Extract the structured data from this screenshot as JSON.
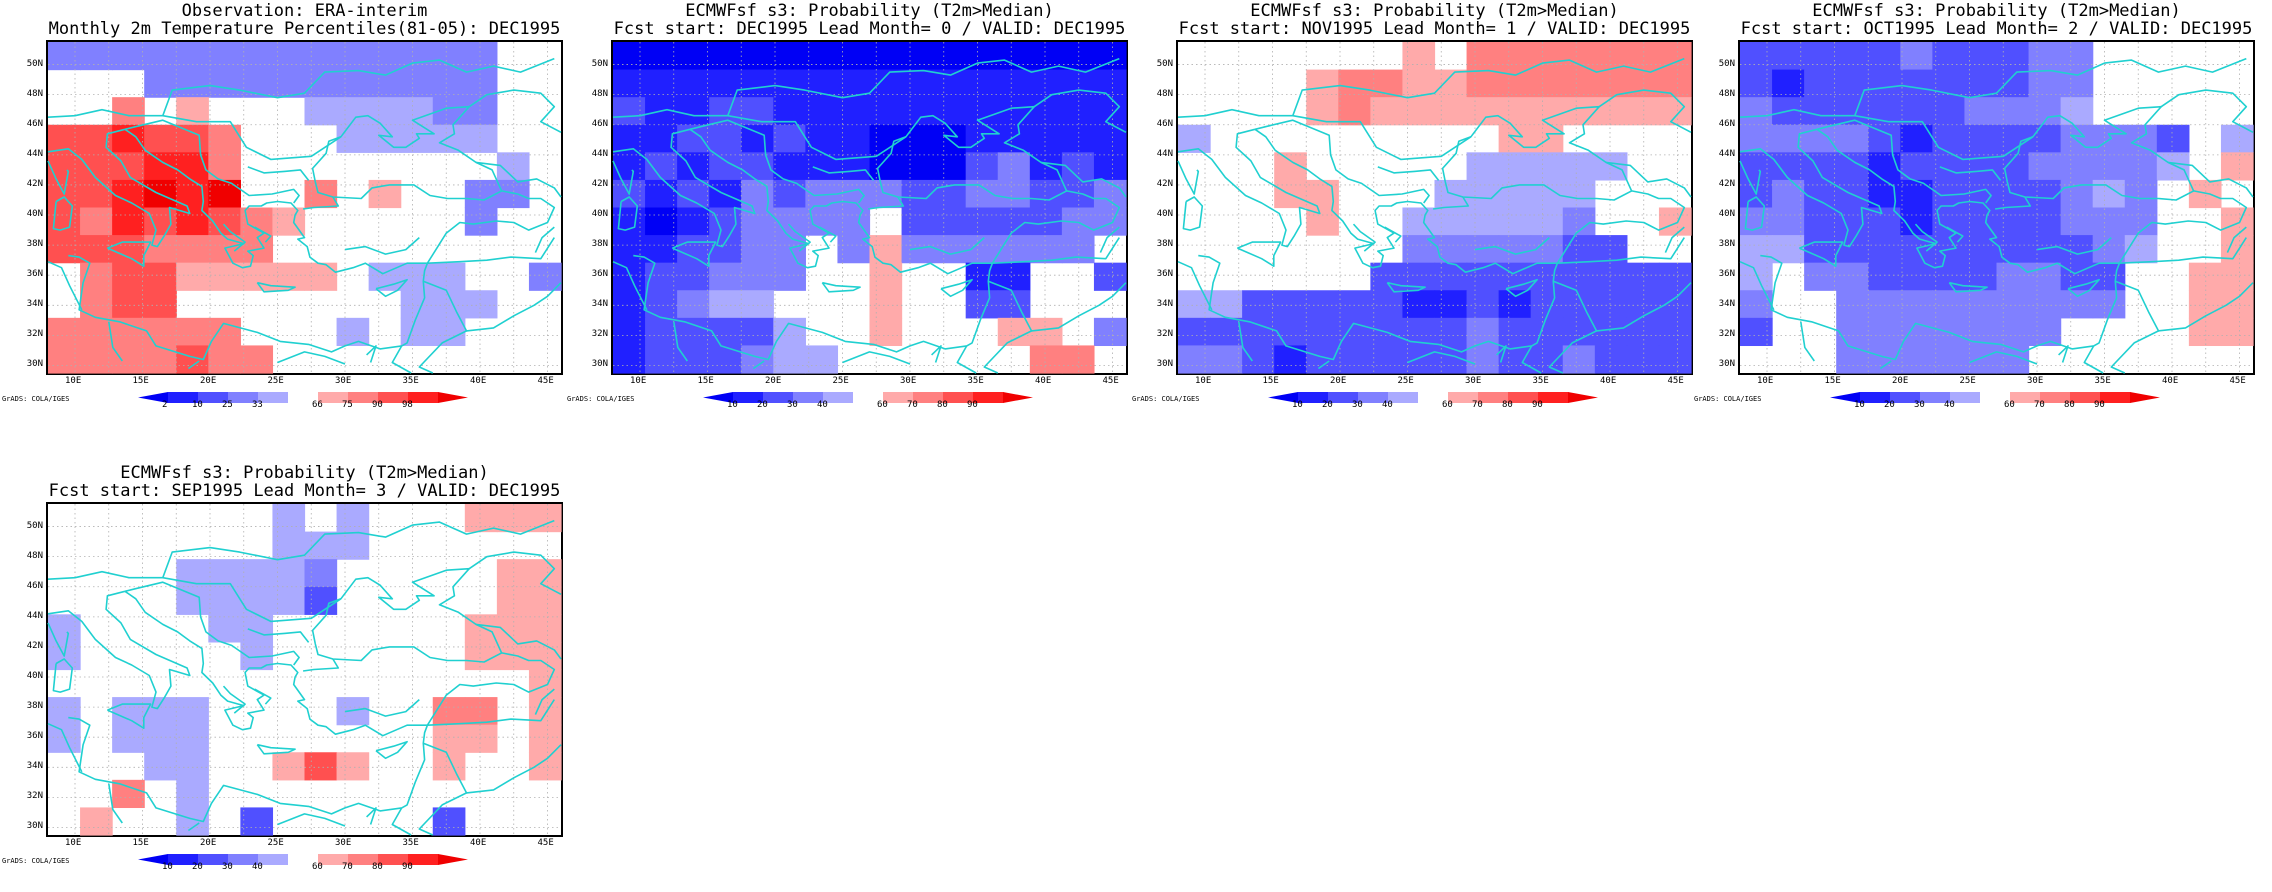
{
  "colors": {
    "coast": "#20d0d0",
    "grid": "#b0b0b0",
    "palette": {
      "b5": "#0000f5",
      "b4": "#2020ff",
      "b3": "#5050ff",
      "b2": "#8080ff",
      "b1": "#aaaaff",
      "w": "#ffffff",
      "r1": "#ffaaaa",
      "r2": "#ff8080",
      "r3": "#ff5050",
      "r4": "#ff2020",
      "r5": "#f00000"
    }
  },
  "axes": {
    "lat_labels": [
      "50N",
      "48N",
      "46N",
      "44N",
      "42N",
      "40N",
      "38N",
      "36N",
      "34N",
      "32N",
      "30N"
    ],
    "lon_labels": [
      "10E",
      "15E",
      "20E",
      "25E",
      "30E",
      "35E",
      "40E",
      "45E"
    ],
    "lon_range": [
      8,
      46
    ],
    "lat_range": [
      29.5,
      51.5
    ]
  },
  "credit": "GrADS: COLA/IGES",
  "panels": [
    {
      "title1": "Observation: ERA-interim",
      "title2": "Monthly 2m Temperature Percentiles(81-05): DEC1995",
      "colorbar_labels": [
        "2",
        "10",
        "25",
        "33",
        "66",
        "75",
        "90",
        "98"
      ],
      "chart_data": {
        "type": "heatmap",
        "grid": [
          "b2 b2 b2 b2 b2 b2 b2 b2 b2 b2 b2 b2 b2 b2 w  w",
          "w  w  w  b2 b2 b2 b2 b2 b2 b2 b2 b2 b2 b2 w  w",
          "w  w  r2 w  r1 w  w  w  b1 b1 b1 b1 b2 b2 w  w",
          "r3 r3 r4 r3 r3 r2 w  w  w  b1 b1 b1 b1 b1 w  w",
          "r3 r3 r3 r4 r4 r2 w  w  w  w  w  w  w  w  b1 w",
          "r3 r3 r4 r5 r4 r5 w  w  r2 w  r1 w  w  b2 b2 w",
          "r3 r2 r4 r3 r4 r3 r2 r1 w  w  w  w  w  b2 w  w",
          "r3 r3 r3 r2 r2 r2 r2 w  w  w  w  w  w  w  w  w",
          "w  r2 r3 r3 r1 r1 r1 r1 r1 w  b1 b1 b1 w  w  b2",
          "w  r2 r3 r3 w  w  w  w  w  w  w  b1 b1 b1 w  w",
          "r2 r2 r2 r2 r2 r2 w  w  w  b1 w  b1 b1 w  w  w",
          "r2 r2 r2 r2 r3 r2 r2 w  w  w  w  w  w  w  w  w"
        ]
      }
    },
    {
      "title1": "ECMWFsf s3: Probability (T2m>Median)",
      "title2": "Fcst start: DEC1995   Lead Month= 0 / VALID: DEC1995",
      "colorbar_labels": [
        "10",
        "20",
        "30",
        "40",
        "60",
        "70",
        "80",
        "90"
      ],
      "chart_data": {
        "type": "heatmap",
        "grid": [
          "b5 b5 b5 b5 b5 b5 b5 b5 b5 b5 b5 b5 b5 b5 b5 b5",
          "b4 b4 b4 b4 b4 b4 b4 b4 b4 b4 b4 b4 b4 b4 b4 b4",
          "b3 b4 b4 b3 b3 b4 b4 b4 b4 b4 b4 b4 b4 b4 b4 b4",
          "b4 b4 b3 b3 b4 b3 b4 b4 b5 b5 b5 b4 b4 b4 b4 b4",
          "b4 b3 b4 b3 b3 b4 b4 b4 b5 b5 b5 b3 b2 b4 b3 b4",
          "b3 b4 b3 b4 b2 b3 b2 b2 b2 b3 b3 b2 b2 b3 b3 b2",
          "b4 b5 b4 b3 b2 b2 b2 b2 w  b3 b3 b3 b3 b3 b2 b2",
          "b4 b4 b3 b3 b2 b2 w  b2 r1 b2 b2 b2 b2 b2 b2 w",
          "b4 b3 b3 b2 b2 b2 w  w  r1 w  w  b4 b4 w  w  b3",
          "b4 b3 b2 b1 b1 w  w  w  r1 w  w  b3 b3 w  w  w",
          "b4 b3 b3 b3 b3 b1 w  w  r1 w  w  w  r1 r1 w  b2",
          "b4 b3 b3 b3 b2 b1 b1 w  w  w  w  w  w  r2 r2 w"
        ]
      }
    },
    {
      "title1": "ECMWFsf s3: Probability (T2m>Median)",
      "title2": "Fcst start: NOV1995   Lead Month= 1 / VALID: DEC1995",
      "colorbar_labels": [
        "10",
        "20",
        "30",
        "40",
        "60",
        "70",
        "80",
        "90"
      ],
      "chart_data": {
        "type": "heatmap",
        "grid": [
          "w  w  w  w  w  w  w  r1 w  r2 r2 r2 r2 r2 r2 r2",
          "w  w  w  w  r1 r2 r2 r1 r1 r2 r2 r2 r2 r2 r2 r2",
          "w  w  w  w  r1 r2 r1 r1 r1 r1 r1 r1 r1 r1 r1 r1",
          "b1 w  w  w  w  w  w  w  w  w  r1 r1 w  w  w  w",
          "w  w  w  r1 w  w  w  w  w  b1 b1 b1 b1 b1 w  w",
          "w  w  w  r1 r1 w  w  w  b1 b1 b1 b1 b1 w  w  w",
          "w  w  w  w  r1 w  w  b1 b1 b1 b1 b1 b2 w  w  r1",
          "w  w  w  w  w  w  w  b2 b2 b2 b2 b2 b3 b3 w  w",
          "w  w  w  w  w  w  b3 b3 b3 b3 b3 b3 b3 b3 b3 b3",
          "b1 b1 b3 b3 b3 b3 b3 b4 b4 b3 b4 b3 b3 b3 b3 b3",
          "b3 b3 b3 b3 b3 b3 b3 b3 b3 b2 b3 b3 b3 b3 b3 b3",
          "b2 b2 b3 b4 b3 b3 b3 b3 b3 b2 b3 b3 b2 b3 b3 b3"
        ]
      }
    },
    {
      "title1": "ECMWFsf s3: Probability (T2m>Median)",
      "title2": "Fcst start: OCT1995   Lead Month= 2 / VALID: DEC1995",
      "colorbar_labels": [
        "10",
        "20",
        "30",
        "40",
        "60",
        "70",
        "80",
        "90"
      ],
      "chart_data": {
        "type": "heatmap",
        "grid": [
          "b3 b3 b3 b3 b3 b2 b3 b3 b3 b2 b2 w  w  w  w  w",
          "b3 b4 b3 b3 b3 b3 b3 b3 b3 b2 b2 w  w  w  w  w",
          "b2 b3 b3 b3 b3 b3 b3 b2 b2 b2 b1 w  w  w  w  w",
          "b2 b2 b2 b2 b3 b4 b3 b3 b3 b3 b2 b2 b2 b3 w  b1",
          "b3 b3 b3 b3 b4 b3 b3 b3 b3 b2 b2 b2 b2 b1 w  r1",
          "b3 b2 b3 b3 b4 b4 b3 b3 b3 b3 b2 b1 b2 w  r1 w",
          "b2 b2 b3 b3 b3 b4 b3 b3 b3 b3 b2 b2 b2 w  w  r1",
          "b1 b1 b3 b3 b3 b3 b3 b3 b3 b3 b3 b2 b1 w  w  r1",
          "b1 w  b2 b2 b3 b3 b3 b3 b2 b2 b3 b3 w  w  r1 r1",
          "b2 w  w  b2 b2 b2 b2 b2 b2 b2 b2 b2 w  w  r1 r1",
          "b3 w  w  b2 b2 b2 b2 b2 b2 b2 w  w  w  w  r1 r1",
          "w  w  w  b2 b2 b2 b2 b2 b2 w  w  w  w  w  w  w"
        ]
      }
    },
    {
      "title1": "ECMWFsf s3: Probability (T2m>Median)",
      "title2": "Fcst start: SEP1995   Lead Month= 3 / VALID: DEC1995",
      "colorbar_labels": [
        "10",
        "20",
        "30",
        "40",
        "60",
        "70",
        "80",
        "90"
      ],
      "chart_data": {
        "type": "heatmap",
        "grid": [
          "w  w  w  w  w  w  w  b1 w  b1 w  w  w  r1 r1 r1",
          "w  w  w  w  w  w  w  b1 b1 b1 w  w  w  w  w  w",
          "w  w  w  w  b1 b1 b1 b1 b2 w  w  w  w  w  r1 r1",
          "w  w  w  w  b1 b1 b1 b1 b3 w  w  w  w  w  r1 r1",
          "b1 w  w  w  w  b1 b1 w  w  w  w  w  w  r1 r1 r1",
          "b1 w  w  w  w  w  b1 w  w  w  w  w  w  r1 r1 r1",
          "w  w  w  w  w  w  w  w  w  w  w  w  w  w  w  r1",
          "b1 w  b1 b1 b1 w  w  w  w  b1 w  w  r2 r2 w  r1",
          "b1 w  b1 b1 b1 w  w  w  w  w  w  w  r1 r1 w  r1",
          "w  w  w  b1 b1 w  w  r1 r3 r1 w  w  r1 w  w  r1",
          "w  w  r2 w  b1 w  w  w  w  w  w  w  w  w  w  w",
          "w  r1 w  w  b1 w  b3 w  w  w  w  w  b3 w  w  w"
        ]
      }
    }
  ]
}
